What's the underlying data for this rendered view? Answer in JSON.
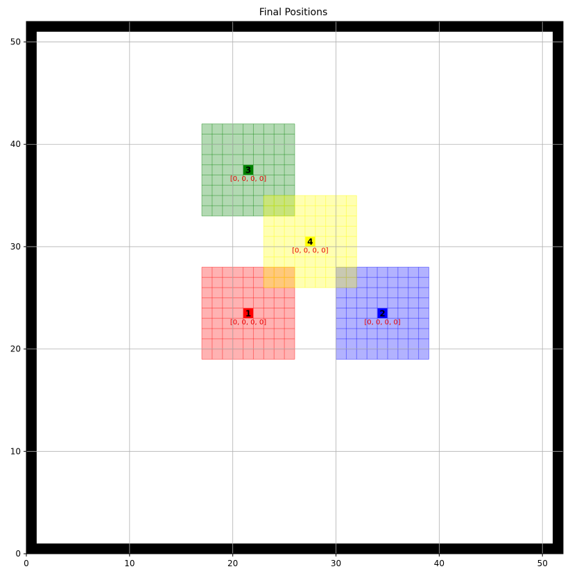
{
  "chart_data": {
    "type": "scatter",
    "title": "Final Positions",
    "xlabel": "",
    "ylabel": "",
    "xlim": [
      0,
      52
    ],
    "ylim": [
      0,
      52
    ],
    "x_ticks": [
      0,
      10,
      20,
      30,
      40,
      50
    ],
    "y_ticks": [
      0,
      10,
      20,
      30,
      40,
      50
    ],
    "x_tick_labels": [
      "0",
      "10",
      "20",
      "30",
      "40",
      "50"
    ],
    "y_tick_labels": [
      "0",
      "10",
      "20",
      "30",
      "40",
      "50"
    ],
    "grid": true,
    "boundary": {
      "color": "#000000",
      "thickness": 1,
      "inner_min": 1,
      "inner_max": 51
    },
    "agents": [
      {
        "id": "1",
        "x": 21.5,
        "y": 23.5,
        "region": [
          17,
          26,
          19,
          28
        ],
        "color": "#ff0000",
        "state": "[0, 0, 0, 0]"
      },
      {
        "id": "2",
        "x": 34.5,
        "y": 23.5,
        "region": [
          30,
          39,
          19,
          28
        ],
        "color": "#0000ff",
        "state": "[0, 0, 0, 0]"
      },
      {
        "id": "3",
        "x": 21.5,
        "y": 37.5,
        "region": [
          17,
          26,
          33,
          42
        ],
        "color": "#008000",
        "state": "[0, 0, 0, 0]"
      },
      {
        "id": "4",
        "x": 27.5,
        "y": 30.5,
        "region": [
          23,
          32,
          26,
          35
        ],
        "color": "#ffff00",
        "state": "[0, 0, 0, 0]"
      }
    ]
  }
}
